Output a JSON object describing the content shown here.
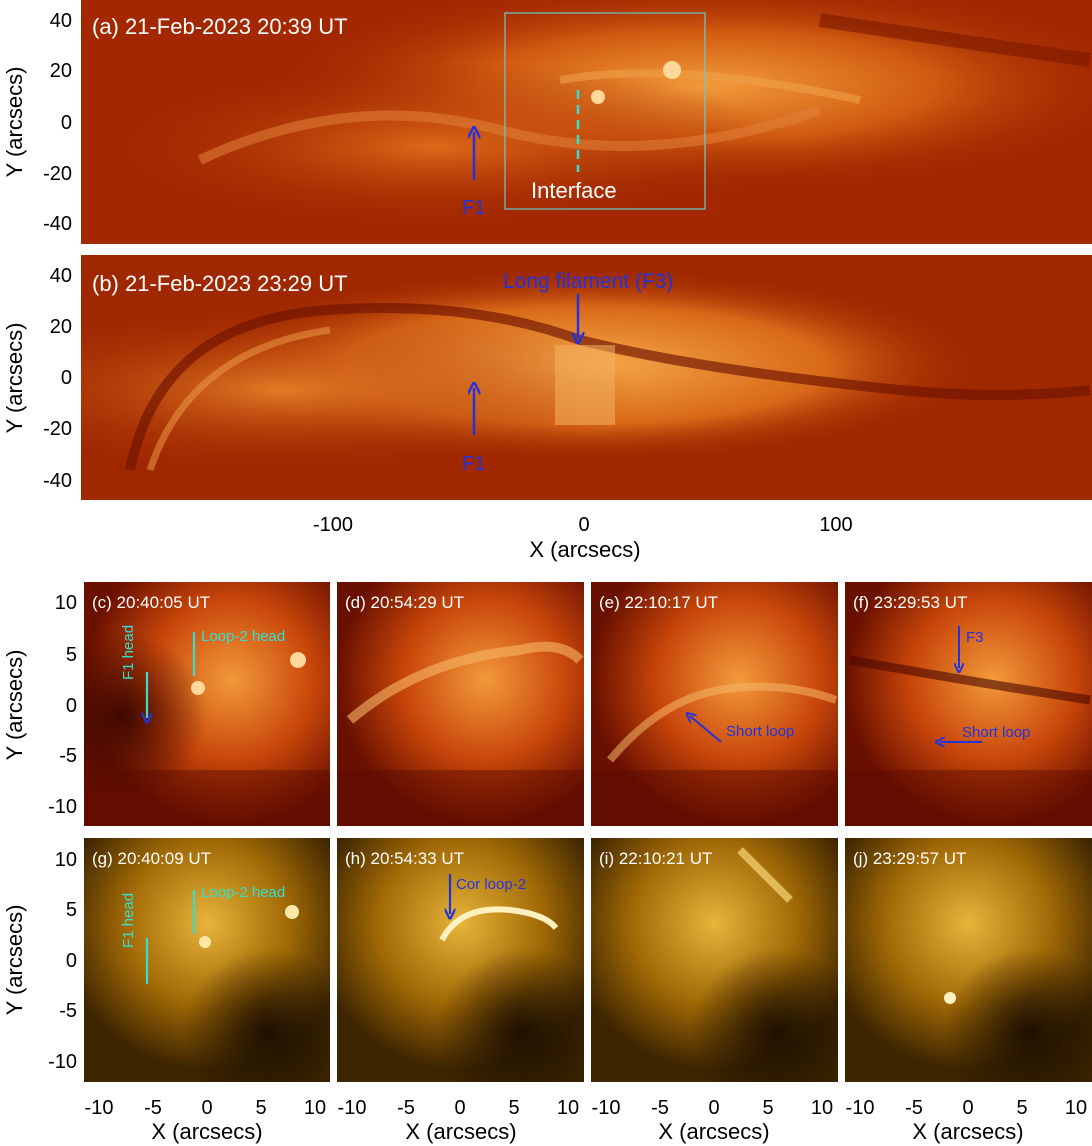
{
  "colors": {
    "red_dark": "#7a1200",
    "red_mid": "#c03a05",
    "red_bright": "#f08a2a",
    "gold_dark": "#4a2f00",
    "gold_mid": "#b07a0a",
    "gold_bright": "#f6cc55",
    "blue_annot": "#2233dd",
    "cyan_annot": "#33e0d0",
    "box_color": "#66cccc"
  },
  "top_axes": {
    "ylabel": "Y (arcsecs)",
    "xlabel": "X (arcsecs)",
    "yticks": [
      "40",
      "20",
      "0",
      "-20",
      "-40"
    ],
    "xticks": [
      "-100",
      "0",
      "100"
    ]
  },
  "panel_a": {
    "title": "(a) 21-Feb-2023 20:39 UT",
    "f1": "F1",
    "interface": "Interface"
  },
  "panel_b": {
    "title": "(b) 21-Feb-2023 23:29 UT",
    "f1": "F1",
    "long_filament": "Long filament (F3)"
  },
  "grid_axes": {
    "ylabel": "Y (arcsecs)",
    "xlabel": "X (arcsecs)",
    "yticks": [
      "10",
      "5",
      "0",
      "-5",
      "-10"
    ],
    "xticks": [
      "-10",
      "-5",
      "0",
      "5",
      "10"
    ]
  },
  "panels_small": {
    "c": {
      "title": "(c) 20:40:05 UT",
      "f1_head": "F1 head",
      "loop2_head": "Loop-2 head"
    },
    "d": {
      "title": "(d) 20:54:29 UT"
    },
    "e": {
      "title": "(e) 22:10:17 UT",
      "short_loop": "Short loop"
    },
    "f": {
      "title": "(f) 23:29:53 UT",
      "f3": "F3",
      "short_loop": "Short loop"
    },
    "g": {
      "title": "(g) 20:40:09 UT",
      "f1_head": "F1 head",
      "loop2_head": "Loop-2 head"
    },
    "h": {
      "title": "(h) 20:54:33 UT",
      "cor_loop2": "Cor loop-2"
    },
    "i": {
      "title": "(i) 22:10:21 UT"
    },
    "j": {
      "title": "(j) 23:29:57 UT"
    }
  }
}
